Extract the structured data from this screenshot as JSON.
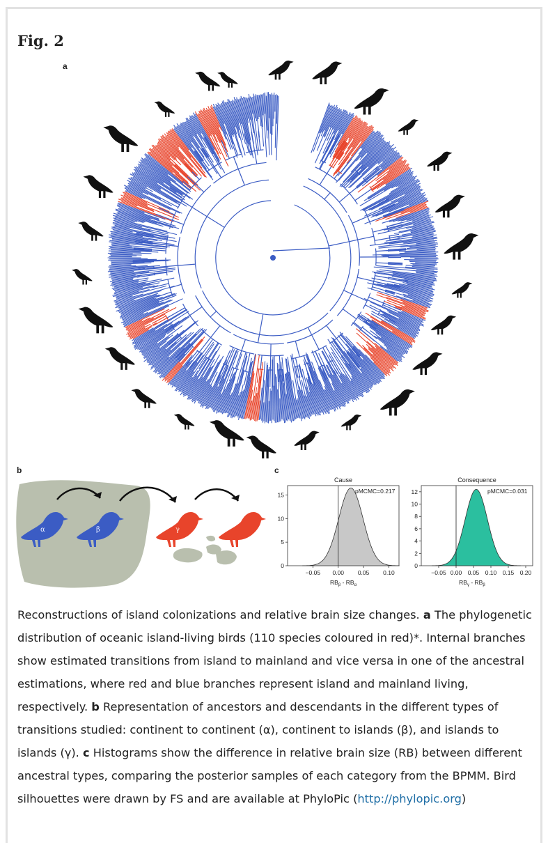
{
  "figure": {
    "title": "Fig. 2",
    "panel_a_label": "a",
    "panel_b_label": "b",
    "panel_c_label": "c"
  },
  "colors": {
    "mainland": "#3b5cc4",
    "island": "#e8442b",
    "land": "#b9bfae",
    "cause_fill": "#c8c8c8",
    "consequence_fill": "#2bbf9f"
  },
  "panel_b": {
    "labels": [
      "α",
      "β",
      "γ"
    ]
  },
  "chart_data": [
    {
      "type": "area",
      "title": "Cause",
      "annotation": "pMCMC=0.217",
      "xlabel": "RB",
      "xlabel_sub1": "β",
      "xlabel_mid": " - RB",
      "xlabel_sub2": "α",
      "xlim": [
        -0.1,
        0.12
      ],
      "ylim": [
        0,
        17
      ],
      "xticks": [
        -0.05,
        0.0,
        0.05,
        0.1
      ],
      "xtick_labels": [
        "−0.05",
        "0.00",
        "0.05",
        "0.10"
      ],
      "yticks": [
        0,
        5,
        10,
        15
      ],
      "density": {
        "mean": 0.025,
        "sd": 0.024,
        "peak": 16.5
      },
      "vline": 0
    },
    {
      "type": "area",
      "title": "Consequence",
      "annotation": "pMCMC=0.031",
      "xlabel": "RB",
      "xlabel_sub1": "γ",
      "xlabel_mid": " - RB",
      "xlabel_sub2": "β",
      "xlim": [
        -0.1,
        0.22
      ],
      "ylim": [
        0,
        13
      ],
      "xticks": [
        -0.05,
        0.0,
        0.05,
        0.1,
        0.15,
        0.2
      ],
      "xtick_labels": [
        "−0.05",
        "0.00",
        "0.05",
        "0.10",
        "0.15",
        "0.20"
      ],
      "yticks": [
        0,
        2,
        4,
        6,
        8,
        10,
        12
      ],
      "density": {
        "mean": 0.058,
        "sd": 0.032,
        "peak": 12.4
      },
      "vline": 0
    }
  ],
  "caption": {
    "intro": "Reconstructions of island colonizations and relative brain size changes. ",
    "a_label": "a",
    "a_text": " The phylogenetic distribution of oceanic island-living birds (110 species coloured in red)*. Internal branches show estimated transitions from island to mainland and vice versa in one of the ancestral estimations, where red and blue branches represent island and mainland living, respectively. ",
    "b_label": "b",
    "b_text": " Representation of ancestors and descendants in the different types of transitions studied: continent to continent (α), continent to islands (β), and islands to islands (γ). ",
    "c_label": "c",
    "c_text": " Histograms show the difference in relative brain size (RB) between different ancestral types, comparing the posterior samples of each category from the BPMM. Bird silhouettes were drawn by FS and are available at PhyloPic (",
    "link": "http://phylopic.org",
    "end": ")"
  }
}
